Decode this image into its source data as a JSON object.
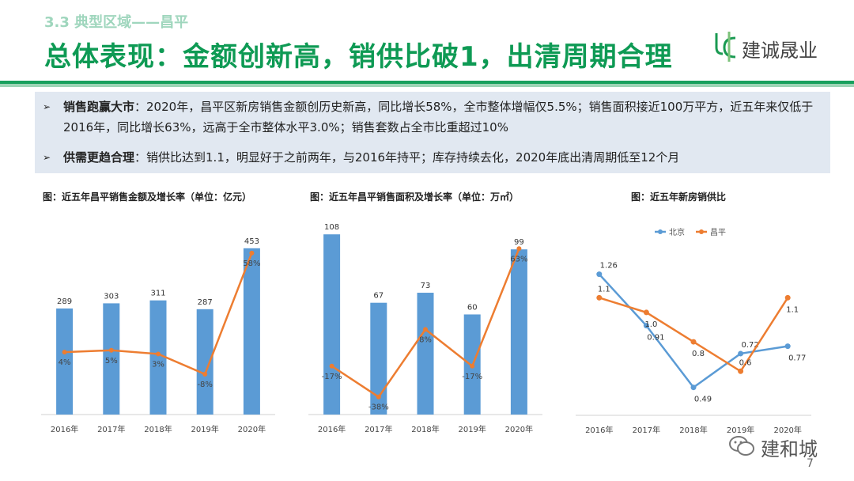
{
  "header": {
    "section": "3.3 典型区域——昌平",
    "title": "总体表现：金额创新高，销供比破1，出清周期合理",
    "logo_text": "建诚晟业"
  },
  "summary": {
    "items": [
      {
        "label": "销售跑赢大市",
        "text": "：2020年，昌平区新房销售金额创历史新高，同比增长58%，全市整体增幅仅5.5%；销售面积接近100万平方，近五年来仅低于2016年，同比增长63%，远高于全市整体水平3.0%；销售套数占全市比重超过10%"
      },
      {
        "label": "供需更趋合理",
        "text": "：销供比达到1.1，明显好于之前两年，与2016年持平；库存持续去化，2020年底出清周期低至12个月"
      }
    ]
  },
  "colors": {
    "bar": "#5b9bd5",
    "line": "#ed7d31",
    "brand": "#0e9a54"
  },
  "chart_data": [
    {
      "type": "bar",
      "caption": "图：近五年昌平销售金额及增长率（单位：亿元）",
      "categories": [
        "2016年",
        "2017年",
        "2018年",
        "2019年",
        "2020年"
      ],
      "values": [
        289,
        303,
        311,
        287,
        453
      ],
      "growth_labels": [
        "4%",
        "5%",
        "3%",
        "-8%",
        "58%"
      ],
      "growth": [
        4,
        5,
        3,
        -8,
        58
      ],
      "growth_range": [
        -30,
        70
      ],
      "ylim": [
        0,
        500
      ]
    },
    {
      "type": "bar",
      "caption": "图：近五年昌平销售面积及增长率（单位：万㎡）",
      "categories": [
        "2016年",
        "2017年",
        "2018年",
        "2019年",
        "2020年"
      ],
      "values": [
        108,
        67,
        73,
        60,
        99
      ],
      "growth_labels": [
        "-17%",
        "-38%",
        "8%",
        "-17%",
        "63%"
      ],
      "growth": [
        -17,
        -38,
        8,
        -17,
        63
      ],
      "growth_range": [
        -50,
        75
      ],
      "ylim": [
        0,
        110
      ]
    },
    {
      "type": "line",
      "caption": "图：近五年新房销供比",
      "categories": [
        "2016年",
        "2017年",
        "2018年",
        "2019年",
        "2020年"
      ],
      "series": [
        {
          "name": "北京",
          "values": [
            1.26,
            0.91,
            0.49,
            0.72,
            0.77
          ],
          "labels": [
            "1.26",
            "0.91",
            "0.49",
            "0.72",
            "0.77"
          ]
        },
        {
          "name": "昌平",
          "values": [
            1.1,
            1.0,
            0.8,
            0.6,
            1.1
          ],
          "labels": [
            "1.1",
            "1.0",
            "0.8",
            "0.6",
            "1.1"
          ]
        }
      ],
      "ylim": [
        0.3,
        1.5
      ]
    }
  ],
  "watermark": "建和城",
  "page_number": "7"
}
